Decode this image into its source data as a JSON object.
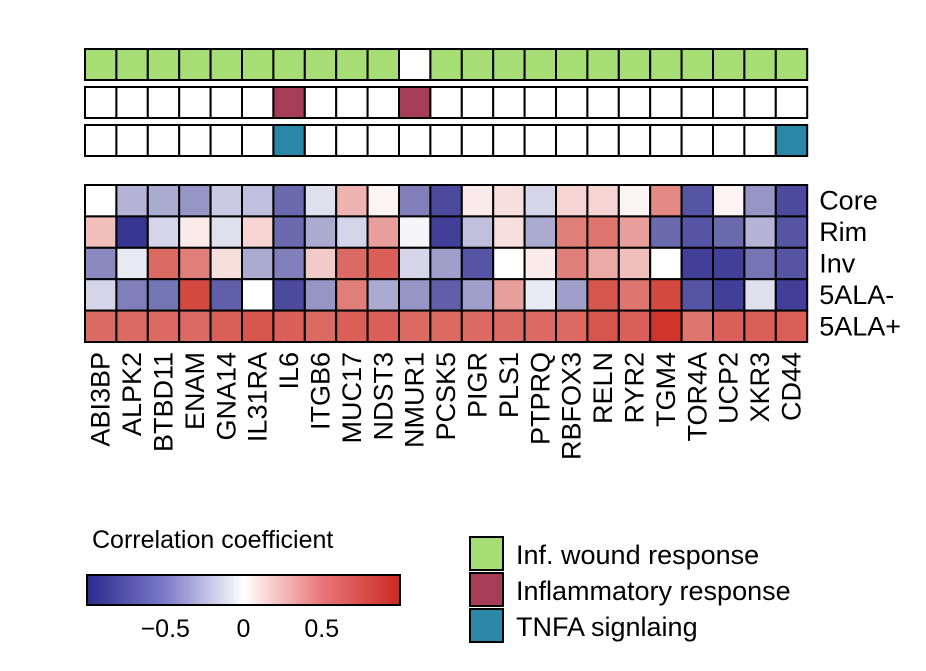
{
  "chart_data": {
    "type": "heatmap",
    "title": "",
    "top_fragment": "",
    "genes": [
      "ABI3BP",
      "ALPK2",
      "BTBD11",
      "ENAM",
      "GNA14",
      "IL31RA",
      "IL6",
      "ITGB6",
      "MUC17",
      "NDST3",
      "NMUR1",
      "PCSK5",
      "PIGR",
      "PLS1",
      "PTPRQ",
      "RBFOX3",
      "RELN",
      "RYR2",
      "TGM4",
      "TOR4A",
      "UCP2",
      "XKR3",
      "CD44"
    ],
    "rows": [
      "Core",
      "Rim",
      "Inv",
      "5ALA-",
      "5ALA+"
    ],
    "values": [
      [
        0.0,
        -0.35,
        -0.4,
        -0.5,
        -0.25,
        -0.3,
        -0.7,
        -0.15,
        0.35,
        0.05,
        -0.6,
        -0.85,
        0.1,
        0.15,
        -0.2,
        0.2,
        0.2,
        0.05,
        0.55,
        -0.8,
        0.05,
        -0.5,
        -0.85
      ],
      [
        0.3,
        -0.95,
        -0.2,
        0.1,
        -0.15,
        0.2,
        -0.7,
        -0.4,
        -0.2,
        0.45,
        -0.05,
        -0.9,
        -0.3,
        0.15,
        -0.4,
        0.6,
        0.65,
        0.45,
        -0.7,
        -0.8,
        -0.7,
        -0.35,
        -0.8
      ],
      [
        -0.55,
        -0.1,
        0.7,
        0.6,
        0.15,
        -0.4,
        -0.6,
        0.25,
        0.7,
        0.75,
        -0.2,
        -0.45,
        -0.8,
        0.0,
        0.1,
        0.6,
        0.4,
        0.3,
        0.0,
        -0.9,
        -0.9,
        -0.65,
        -0.8
      ],
      [
        -0.2,
        -0.6,
        -0.65,
        0.85,
        -0.75,
        0.0,
        -0.85,
        -0.5,
        0.6,
        -0.4,
        -0.5,
        -0.75,
        -0.45,
        0.45,
        -0.1,
        -0.45,
        0.8,
        0.65,
        0.85,
        -0.8,
        -0.9,
        -0.15,
        -0.9
      ],
      [
        0.7,
        0.7,
        0.7,
        0.7,
        0.75,
        0.8,
        0.75,
        0.7,
        0.75,
        0.75,
        0.7,
        0.7,
        0.7,
        0.7,
        0.7,
        0.7,
        0.8,
        0.75,
        0.95,
        0.65,
        0.75,
        0.75,
        0.75
      ]
    ],
    "annotation_tracks": [
      {
        "label": "Inf. wound response",
        "color": "#a6dd75",
        "present": [
          1,
          1,
          1,
          1,
          1,
          1,
          1,
          1,
          1,
          1,
          0,
          1,
          1,
          1,
          1,
          1,
          1,
          1,
          1,
          1,
          1,
          1,
          1
        ]
      },
      {
        "label": "Inflammatory response",
        "color": "#a53d57",
        "present": [
          0,
          0,
          0,
          0,
          0,
          0,
          1,
          0,
          0,
          0,
          1,
          0,
          0,
          0,
          0,
          0,
          0,
          0,
          0,
          0,
          0,
          0,
          0
        ]
      },
      {
        "label": "TNFA signlaing",
        "color": "#2a87a6",
        "present": [
          0,
          0,
          0,
          0,
          0,
          0,
          1,
          0,
          0,
          0,
          0,
          0,
          0,
          0,
          0,
          0,
          0,
          0,
          0,
          0,
          0,
          0,
          1
        ]
      }
    ],
    "colorbar": {
      "title": "Correlation coefficient",
      "ticks": [
        -0.5,
        0,
        0.5
      ],
      "tick_labels": [
        "−0.5",
        "0",
        "0.5"
      ],
      "range": [
        -1,
        1
      ],
      "colors": [
        "#2c2a8c",
        "#ffffff",
        "#cc2a20"
      ]
    }
  }
}
